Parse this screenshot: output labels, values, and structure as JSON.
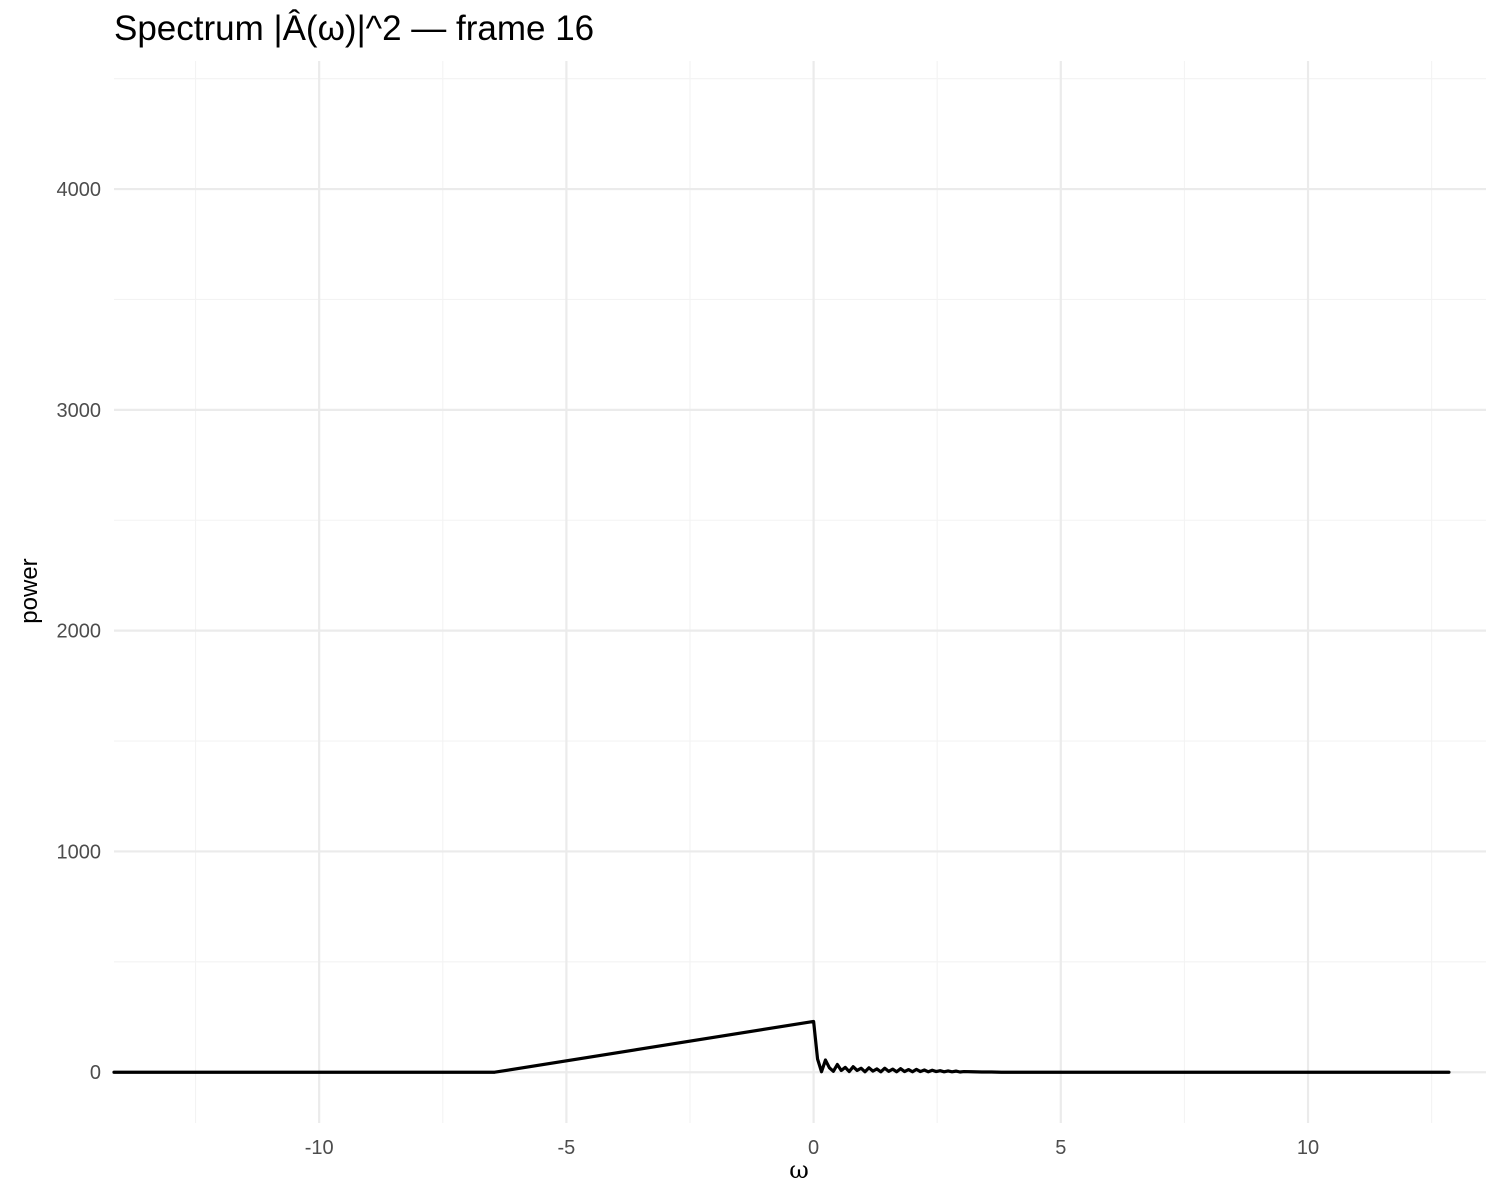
{
  "chart_data": {
    "type": "line",
    "title": "Spectrum |Â(ω)|^2 — frame 16",
    "xlabel": "ω",
    "ylabel": "power",
    "xlim": [
      -14.15,
      13.6
    ],
    "ylim": [
      -230,
      4580
    ],
    "x_ticks": [
      -10,
      -5,
      0,
      5,
      10
    ],
    "x_tick_labels": [
      "-10",
      "-5",
      "0",
      "5",
      "10"
    ],
    "x_minor_ticks": [
      -12.5,
      -7.5,
      -2.5,
      2.5,
      7.5,
      12.5
    ],
    "y_ticks": [
      0,
      1000,
      2000,
      3000,
      4000
    ],
    "y_tick_labels": [
      "0",
      "1000",
      "2000",
      "3000",
      "4000"
    ],
    "y_minor_ticks": [
      500,
      1500,
      2500,
      3500,
      4500
    ],
    "grid": true,
    "legend": "none",
    "line_color": "#000000",
    "series": [
      {
        "x": [
          -14.15,
          -6.45,
          0.0,
          0.08,
          0.16,
          0.24,
          0.32,
          0.4,
          0.48,
          0.56,
          0.64,
          0.72,
          0.8,
          0.88,
          0.96,
          1.04,
          1.12,
          1.2,
          1.28,
          1.36,
          1.44,
          1.52,
          1.6,
          1.68,
          1.76,
          1.84,
          1.92,
          2.0,
          2.08,
          2.16,
          2.24,
          2.32,
          2.4,
          2.48,
          2.56,
          2.64,
          2.72,
          2.8,
          2.88,
          2.96,
          3.04,
          3.2,
          3.4,
          3.6,
          3.8,
          4.2,
          12.85
        ],
        "y": [
          0,
          0,
          230,
          60,
          2,
          55,
          20,
          4,
          35,
          8,
          22,
          3,
          25,
          8,
          18,
          2,
          20,
          5,
          15,
          2,
          18,
          4,
          14,
          2,
          16,
          3,
          12,
          2,
          13,
          3,
          10,
          2,
          9,
          3,
          7,
          2,
          6,
          2,
          5,
          1,
          3,
          2,
          1,
          1,
          0,
          0,
          0
        ]
      }
    ]
  }
}
